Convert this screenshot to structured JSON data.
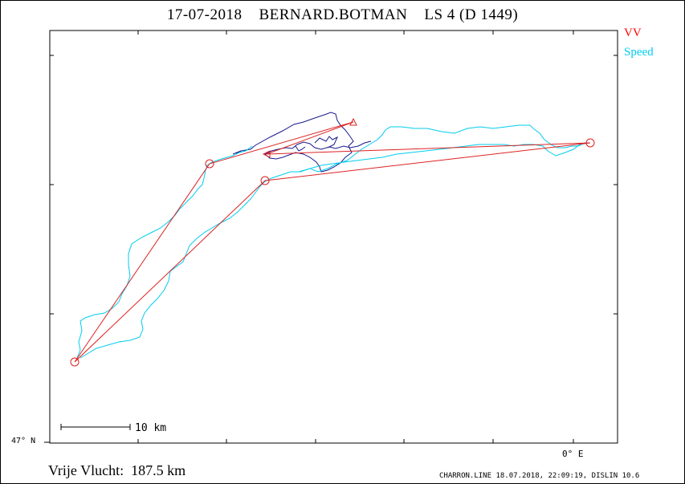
{
  "header": {
    "title": "17-07-2018    BERNARD.BOTMAN    LS 4 (D 1449)"
  },
  "legend": {
    "items": [
      {
        "label": "VV",
        "color": "#ff0000"
      },
      {
        "label": "Speed",
        "color": "#00ccee"
      }
    ]
  },
  "map": {
    "latitude_label": "47° N",
    "longitude_label": "0° E",
    "scale_bar_label": "10 km",
    "colors": {
      "task_line": "#dd2222",
      "track_primary": "#00ccee",
      "track_secondary": "#1a1a8c",
      "frame": "#000000"
    }
  },
  "footer": {
    "distance_text": "Vrije Vlucht:  187.5 km",
    "credit_text": "CHARRON.LINE 18.07.2018, 22:09:19, DISLIN 10.6"
  }
}
